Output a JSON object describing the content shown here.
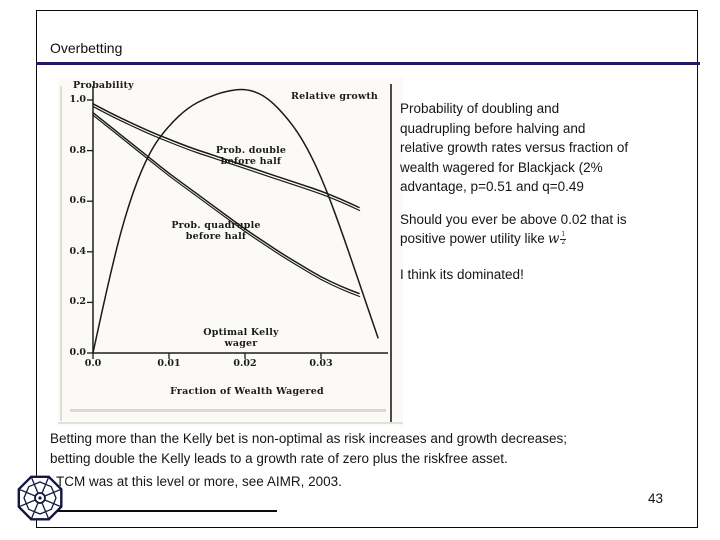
{
  "slide": {
    "title": "Overbetting",
    "page_number": "43",
    "footer_note": "TCM was at this level or more, see AIMR, 2003.",
    "bottom_lines": [
      "Betting more than the Kelly bet is non-optimal as risk increases and growth decreases;",
      "betting double the Kelly leads to a growth rate of zero plus the riskfree asset."
    ]
  },
  "right_text": {
    "para1_lines": [
      "Probability of doubling and",
      "quadrupling before halving and",
      "relative growth rates versus fraction of",
      "wealth wagered for Blackjack (2%",
      "advantage, p=0.51 and q=0.49"
    ],
    "para2_line1": "Should you ever be above 0.02 that is",
    "para2_line2_prefix": "positive power utility like",
    "math_base": "w",
    "math_num": "1",
    "math_den": "2",
    "para3": "I think its dominated!"
  },
  "chart": {
    "ylabel": "Probability",
    "xlabel": "Fraction of Wealth Wagered",
    "y_tick_labels": [
      "1.0",
      "0.8",
      "0.6",
      "0.4",
      "0.2",
      "0.0"
    ],
    "x_tick_labels": [
      "0.0",
      "0.01",
      "0.02",
      "0.03"
    ],
    "labels": {
      "relative_growth": "Relative growth",
      "prob_double_1": "Prob. double",
      "prob_double_2": "before half",
      "prob_quadruple_1": "Prob. quadruple",
      "prob_quadruple_2": "before half",
      "optimal_kelly": "Optimal Kelly wager"
    }
  },
  "chart_data": {
    "type": "line",
    "title": "",
    "xlabel": "Fraction of Wealth Wagered",
    "ylabel": "Probability",
    "xlim": [
      0,
      0.0375
    ],
    "ylim": [
      0,
      1.05
    ],
    "grid": false,
    "legend": "labels drawn inline on plot",
    "x_tick_values": [
      0,
      0.01,
      0.02,
      0.03
    ],
    "y_tick_values": [
      1.0,
      0.8,
      0.6,
      0.4,
      0.2,
      0.0
    ],
    "annotations": [
      "Optimal Kelly wager at 0.02"
    ],
    "series": [
      {
        "name": "Relative growth",
        "scan_double_line": false,
        "x": [
          0,
          0.0025,
          0.005,
          0.0075,
          0.01,
          0.0125,
          0.015,
          0.0175,
          0.02,
          0.0225,
          0.025,
          0.0275,
          0.03,
          0.0325,
          0.035,
          0.0375
        ],
        "values": [
          0.0,
          0.35,
          0.62,
          0.8,
          0.9,
          0.97,
          1.01,
          1.035,
          1.045,
          1.02,
          0.95,
          0.85,
          0.7,
          0.5,
          0.28,
          0.06
        ]
      },
      {
        "name": "Prob. double before half",
        "scan_double_line": true,
        "x": [
          0,
          0.0025,
          0.005,
          0.0075,
          0.01,
          0.0125,
          0.015,
          0.0175,
          0.02,
          0.0225,
          0.025,
          0.0275,
          0.03,
          0.0325,
          0.035
        ],
        "values": [
          0.985,
          0.945,
          0.91,
          0.875,
          0.845,
          0.815,
          0.79,
          0.765,
          0.74,
          0.715,
          0.69,
          0.665,
          0.64,
          0.61,
          0.575
        ]
      },
      {
        "name": "Prob. quadruple before half",
        "scan_double_line": true,
        "x": [
          0,
          0.0025,
          0.005,
          0.0075,
          0.01,
          0.0125,
          0.015,
          0.0175,
          0.02,
          0.0225,
          0.025,
          0.0275,
          0.03,
          0.0325,
          0.035
        ],
        "values": [
          0.95,
          0.89,
          0.83,
          0.77,
          0.71,
          0.655,
          0.6,
          0.545,
          0.49,
          0.44,
          0.39,
          0.345,
          0.3,
          0.265,
          0.235
        ]
      }
    ]
  },
  "colors": {
    "title_rule": "#1c1c6b",
    "ink": "#1a1a1a"
  }
}
